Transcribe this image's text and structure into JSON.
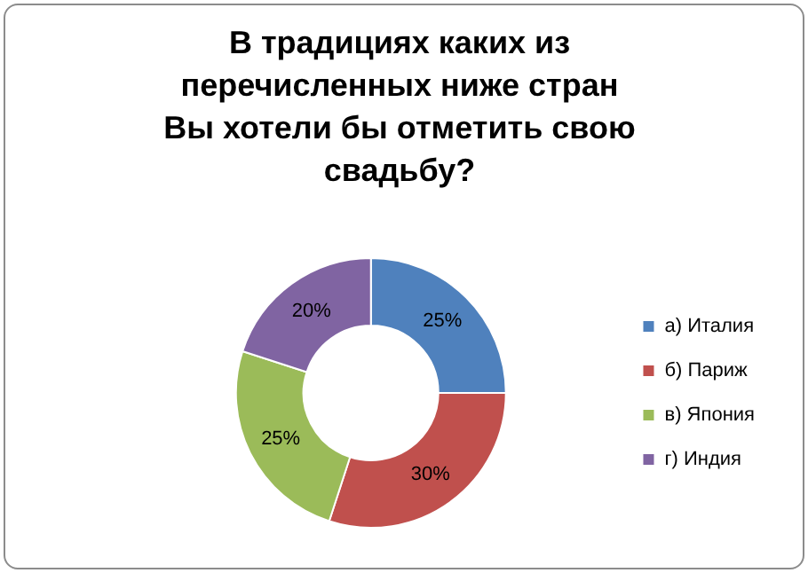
{
  "chart_data": {
    "type": "donut",
    "title": "В традициях каких из перечисленных ниже стран Вы хотели бы отметить свою свадьбу?",
    "categories": [
      "а) Италия",
      "б) Париж",
      "в) Япония",
      "г) Индия"
    ],
    "values": [
      25,
      30,
      25,
      20
    ],
    "colors": [
      "#4f81bd",
      "#c0504d",
      "#9bbb59",
      "#8064a2"
    ],
    "value_labels": [
      "25%",
      "30%",
      "25%",
      "20%"
    ],
    "legend": "right"
  }
}
